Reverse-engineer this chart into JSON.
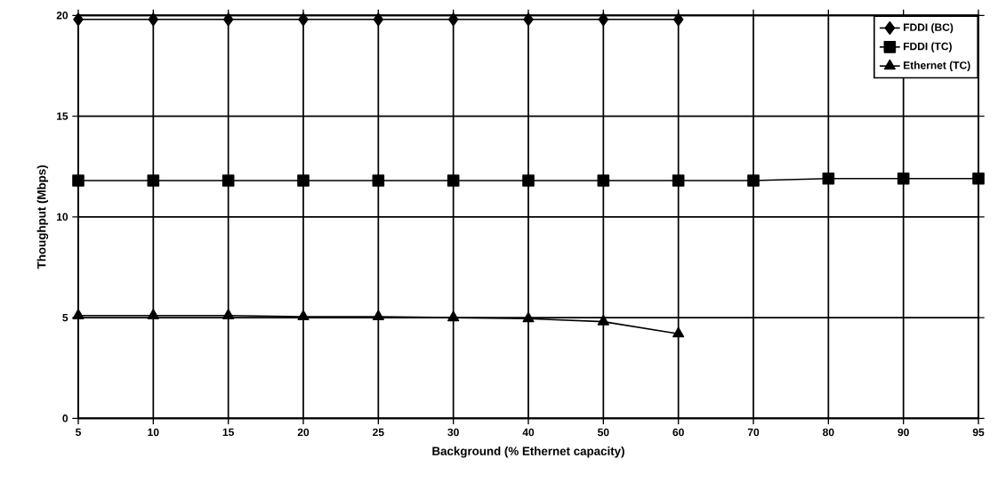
{
  "chart_data": {
    "type": "line",
    "xlabel": "Background (% Ethernet capacity)",
    "ylabel": "Thoughput (Mbps)",
    "categories": [
      "5",
      "10",
      "15",
      "20",
      "25",
      "30",
      "40",
      "50",
      "60",
      "70",
      "80",
      "90",
      "95"
    ],
    "series": [
      {
        "name": "FDDI (BC)",
        "color": "#000000",
        "marker": "diamond",
        "values": [
          19.8,
          19.8,
          19.8,
          19.8,
          19.8,
          19.8,
          19.8,
          19.8,
          19.8,
          null,
          null,
          null,
          null
        ]
      },
      {
        "name": "FDDI (TC)",
        "color": "#000000",
        "marker": "square",
        "values": [
          11.8,
          11.8,
          11.8,
          11.8,
          11.8,
          11.8,
          11.8,
          11.8,
          11.8,
          11.8,
          11.9,
          11.9,
          11.9
        ]
      },
      {
        "name": "Ethernet (TC)",
        "color": "#000000",
        "marker": "triangle",
        "values": [
          5.1,
          5.1,
          5.1,
          5.05,
          5.05,
          5.0,
          4.95,
          4.8,
          4.2,
          null,
          null,
          null,
          null
        ]
      }
    ],
    "ylim": [
      0,
      20
    ],
    "yticks": [
      0,
      5,
      10,
      15,
      20
    ],
    "grid": true,
    "legend": "top right",
    "line_style": "solid"
  }
}
